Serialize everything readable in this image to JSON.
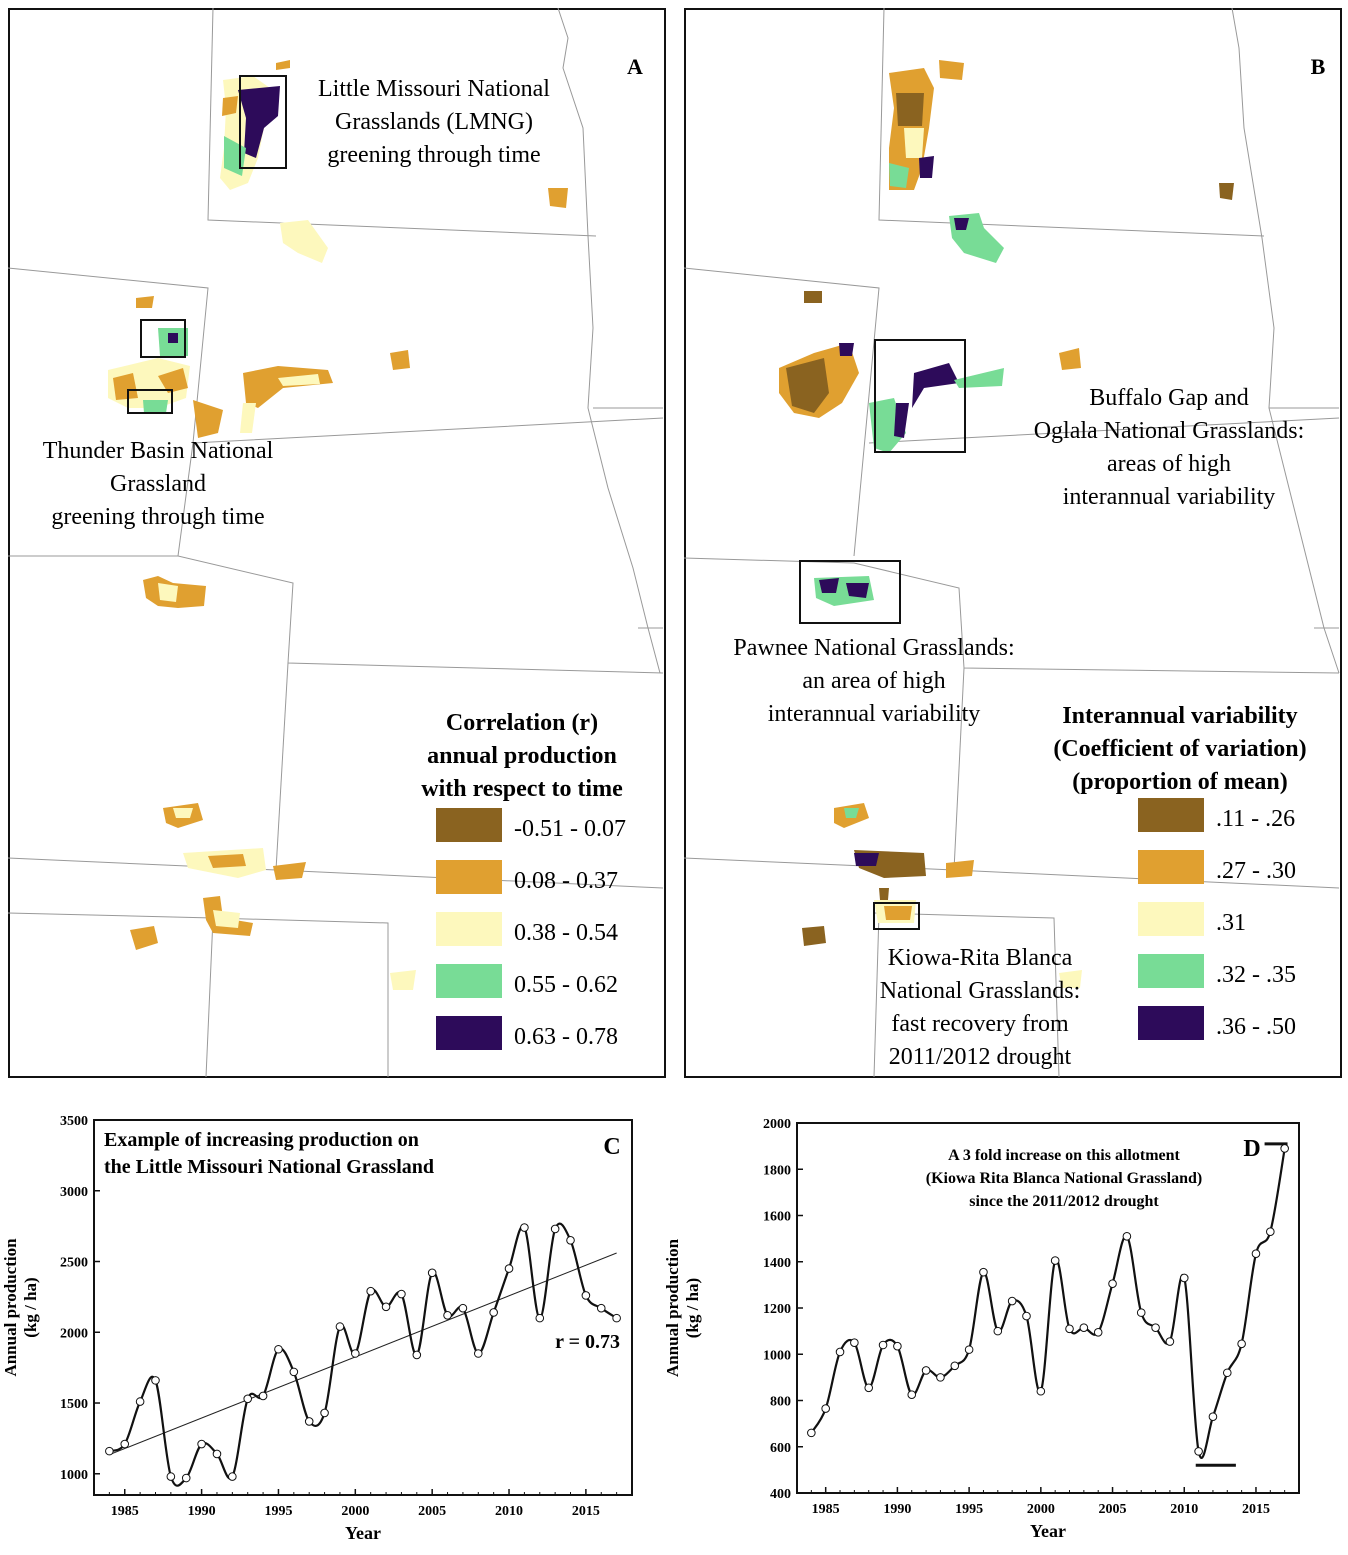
{
  "panels": {
    "a": {
      "letter": "A",
      "annotations": {
        "lmng": [
          "Little Missouri National",
          "Grasslands (LMNG)",
          "greening through time"
        ],
        "thunder": [
          "Thunder Basin National",
          "Grassland",
          "greening through time"
        ]
      },
      "legend": {
        "title": [
          "Correlation (r)",
          "annual production",
          "with respect to time"
        ],
        "items": [
          {
            "label": "-0.51 - 0.07",
            "color": "#8a6320"
          },
          {
            "label": "0.08 - 0.37",
            "color": "#e0a030"
          },
          {
            "label": "0.38 - 0.54",
            "color": "#fdf8bd"
          },
          {
            "label": "0.55 - 0.62",
            "color": "#78dc96"
          },
          {
            "label": "0.63 - 0.78",
            "color": "#2d0b5a"
          }
        ]
      }
    },
    "b": {
      "letter": "B",
      "annotations": {
        "buffalo": [
          "Buffalo Gap and",
          "Oglala National Grasslands:",
          "areas of high",
          "interannual variability"
        ],
        "pawnee": [
          "Pawnee National Grasslands:",
          "an area of high",
          "interannual variability"
        ],
        "kiowa": [
          "Kiowa-Rita Blanca",
          "National Grasslands:",
          "fast recovery from",
          "2011/2012 drought"
        ]
      },
      "legend": {
        "title": [
          "Interannual variability",
          "(Coefficient of variation)",
          "(proportion of mean)"
        ],
        "items": [
          {
            "label": ".11 - .26",
            "color": "#8a6320"
          },
          {
            "label": ".27 - .30",
            "color": "#e0a030"
          },
          {
            "label": ".31",
            "color": "#fdf8bd"
          },
          {
            "label": ".32 - .35",
            "color": "#78dc96"
          },
          {
            "label": ".36 - .50",
            "color": "#2d0b5a"
          }
        ]
      }
    }
  },
  "chart_data": [
    {
      "panel": "C",
      "type": "line",
      "title_lines": [
        "Example of increasing production on",
        "the Little Missouri National Grassland"
      ],
      "xlabel": "Year",
      "ylabel_lines": [
        "Annual production",
        "(kg / ha)"
      ],
      "xlim": [
        1983,
        2018
      ],
      "ylim": [
        850,
        3500
      ],
      "yticks": [
        1000,
        1500,
        2000,
        2500,
        3000,
        3500
      ],
      "xticks": [
        1985,
        1990,
        1995,
        2000,
        2005,
        2010,
        2015
      ],
      "annotation": "r = 0.73",
      "trendline": {
        "x": [
          1984,
          2017
        ],
        "y": [
          1135,
          2560
        ]
      },
      "x": [
        1984,
        1985,
        1986,
        1987,
        1988,
        1989,
        1990,
        1991,
        1992,
        1993,
        1994,
        1995,
        1996,
        1997,
        1998,
        1999,
        2000,
        2001,
        2002,
        2003,
        2004,
        2005,
        2006,
        2007,
        2008,
        2009,
        2010,
        2011,
        2012,
        2013,
        2014,
        2015,
        2016,
        2017
      ],
      "y": [
        1160,
        1210,
        1510,
        1660,
        980,
        970,
        1210,
        1140,
        980,
        1530,
        1550,
        1880,
        1720,
        1370,
        1430,
        2040,
        1850,
        2290,
        2180,
        2270,
        1840,
        2420,
        2120,
        2170,
        1850,
        2140,
        2450,
        2740,
        2100,
        2730,
        2650,
        2260,
        2170,
        2100
      ]
    },
    {
      "panel": "D",
      "type": "line",
      "title_lines": [
        "A 3 fold increase on this allotment",
        "(Kiowa Rita Blanca National Grassland)",
        "since the 2011/2012 drought"
      ],
      "xlabel": "Year",
      "ylabel_lines": [
        "Annual production",
        "(kg / ha)"
      ],
      "xlim": [
        1983,
        2018
      ],
      "ylim": [
        400,
        2000
      ],
      "yticks": [
        400,
        600,
        800,
        1000,
        1200,
        1400,
        1600,
        1800,
        2000
      ],
      "xticks": [
        1985,
        1990,
        1995,
        2000,
        2005,
        2010,
        2015
      ],
      "reference_marks": [
        {
          "x": [
            2010.8,
            2013.6
          ],
          "y": 520
        },
        {
          "x": [
            2015.6,
            2017.2
          ],
          "y": 1910
        }
      ],
      "x": [
        1984,
        1985,
        1986,
        1987,
        1988,
        1989,
        1990,
        1991,
        1992,
        1993,
        1994,
        1995,
        1996,
        1997,
        1998,
        1999,
        2000,
        2001,
        2002,
        2003,
        2004,
        2005,
        2006,
        2007,
        2008,
        2009,
        2010,
        2011,
        2012,
        2013,
        2014,
        2015,
        2016,
        2017
      ],
      "y": [
        660,
        765,
        1010,
        1050,
        855,
        1040,
        1035,
        825,
        930,
        900,
        950,
        1020,
        1355,
        1100,
        1230,
        1165,
        840,
        1405,
        1110,
        1115,
        1095,
        1305,
        1510,
        1180,
        1115,
        1055,
        1330,
        580,
        730,
        920,
        1045,
        1435,
        1530,
        1890
      ]
    }
  ]
}
